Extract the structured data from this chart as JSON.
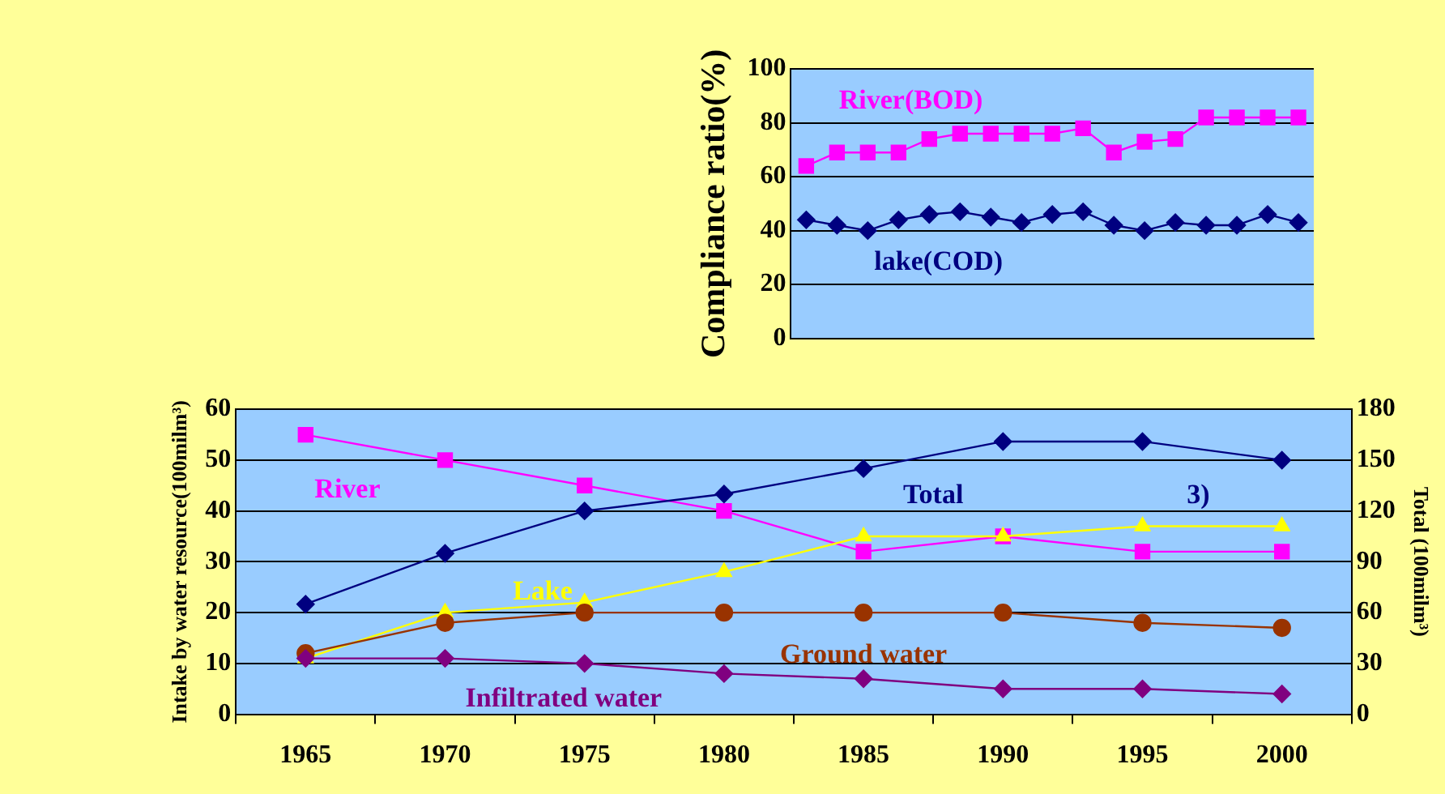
{
  "chart_data": [
    {
      "type": "line",
      "ylabel": "Compliance ratio(%)",
      "categories": [
        null,
        null,
        null,
        null,
        null,
        null,
        null,
        null,
        null,
        null,
        null,
        null,
        null,
        null,
        null,
        null,
        null
      ],
      "ylim": [
        0,
        100
      ],
      "yticks": [
        0,
        20,
        40,
        60,
        80,
        100
      ],
      "grid": "y",
      "legend": false,
      "series": [
        {
          "name": "River(BOD)",
          "color": "#ff00ff",
          "marker": "square",
          "values": [
            64,
            69,
            69,
            69,
            74,
            76,
            76,
            76,
            76,
            78,
            69,
            73,
            74,
            82,
            82,
            82,
            82
          ]
        },
        {
          "name": "lake(COD)",
          "color": "#000080",
          "marker": "diamond",
          "values": [
            44,
            42,
            40,
            44,
            46,
            47,
            45,
            43,
            46,
            47,
            42,
            40,
            43,
            42,
            42,
            46,
            43
          ]
        }
      ]
    },
    {
      "type": "line",
      "ylabel": "Intake by water resource(100milm³)",
      "y2label": "Total (100milm³)",
      "categories": [
        "1965",
        "1970",
        "1975",
        "1980",
        "1985",
        "1990",
        "1995",
        "2000"
      ],
      "ylim": [
        0,
        60
      ],
      "yticks": [
        0,
        10,
        20,
        30,
        40,
        50,
        60
      ],
      "y2lim": [
        0,
        180
      ],
      "y2ticks": [
        0,
        30,
        60,
        90,
        120,
        150,
        180
      ],
      "grid": "y",
      "legend": false,
      "annotations": [
        "3)"
      ],
      "series": [
        {
          "name": "River",
          "color": "#ff00ff",
          "marker": "square",
          "values": [
            55,
            50,
            45,
            40,
            32,
            35,
            32,
            32
          ]
        },
        {
          "name": "Total",
          "color": "#000080",
          "marker": "diamond",
          "axis": "y2",
          "values": [
            65,
            95,
            120,
            130,
            145,
            161,
            161,
            150
          ]
        },
        {
          "name": "Lake",
          "color": "#ffff00",
          "marker": "triangle",
          "values": [
            11,
            20,
            22,
            28,
            35,
            35,
            37,
            37
          ]
        },
        {
          "name": "Ground water",
          "color": "#993300",
          "marker": "circle",
          "values": [
            12,
            18,
            20,
            20,
            20,
            20,
            18,
            17
          ]
        },
        {
          "name": "Infiltrated water",
          "color": "#800080",
          "marker": "diamond",
          "values": [
            11,
            11,
            10,
            8,
            7,
            5,
            5,
            4
          ]
        }
      ]
    }
  ]
}
